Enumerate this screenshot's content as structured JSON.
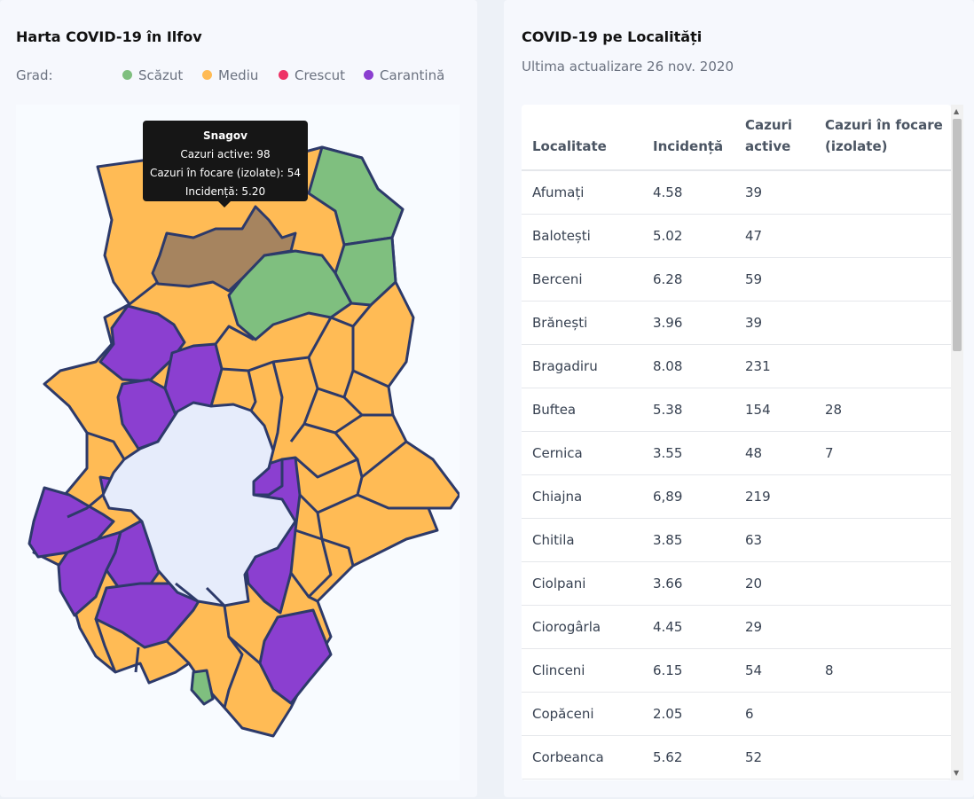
{
  "map_card": {
    "title": "Harta COVID-19 în Ilfov",
    "legend": {
      "label": "Grad:",
      "items": [
        {
          "name": "scazut",
          "label": "Scăzut",
          "color": "#7fbf7f"
        },
        {
          "name": "mediu",
          "label": "Mediu",
          "color": "#ffbb55"
        },
        {
          "name": "crescut",
          "label": "Crescut",
          "color": "#ee3366"
        },
        {
          "name": "carantina",
          "label": "Carantină",
          "color": "#8b3fd0"
        }
      ]
    },
    "colors": {
      "mediu": "#ffbb55",
      "scazut": "#7fbf7f",
      "carantina": "#8b3fd0",
      "highlight": "#a6845f",
      "bucharest": "#e6ecfb",
      "border": "#2d3a6a"
    },
    "tooltip": {
      "title": "Snagov",
      "active": "Cazuri active: 98",
      "focare": "Cazuri în focare (izolate): 54",
      "incidenta": "Incidență: 5.20"
    }
  },
  "table_card": {
    "title": "COVID-19 pe Localități",
    "subtitle": "Ultima actualizare 26 nov. 2020",
    "columns": [
      "Localitate",
      "Incidență",
      "Cazuri active",
      "Cazuri în focare (izolate)"
    ],
    "rows": [
      [
        "Afumați",
        "4.58",
        "39",
        ""
      ],
      [
        "Balotești",
        "5.02",
        "47",
        ""
      ],
      [
        "Berceni",
        "6.28",
        "59",
        ""
      ],
      [
        "Brănești",
        "3.96",
        "39",
        ""
      ],
      [
        "Bragadiru",
        "8.08",
        "231",
        ""
      ],
      [
        "Buftea",
        "5.38",
        "154",
        "28"
      ],
      [
        "Cernica",
        "3.55",
        "48",
        "7"
      ],
      [
        "Chiajna",
        "6,89",
        "219",
        ""
      ],
      [
        "Chitila",
        "3.85",
        "63",
        ""
      ],
      [
        "Ciolpani",
        "3.66",
        "20",
        ""
      ],
      [
        "Ciorogârla",
        "4.45",
        "29",
        ""
      ],
      [
        "Clinceni",
        "6.15",
        "54",
        "8"
      ],
      [
        "Copăceni",
        "2.05",
        "6",
        ""
      ],
      [
        "Corbeanca",
        "5.62",
        "52",
        ""
      ]
    ]
  }
}
